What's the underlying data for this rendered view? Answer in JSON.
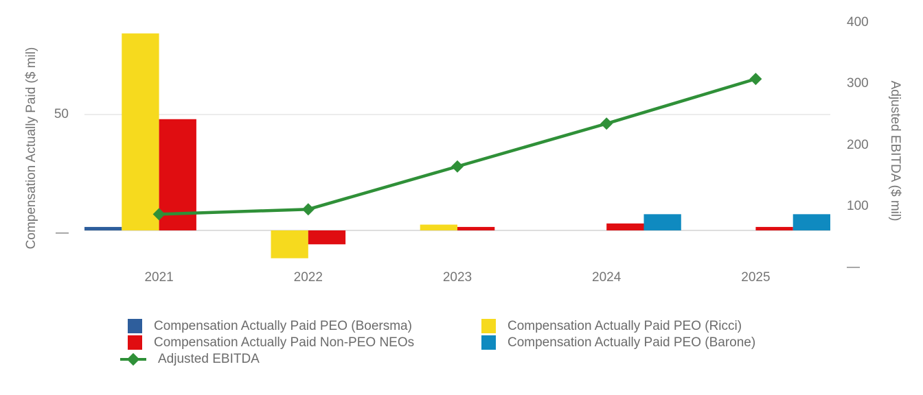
{
  "chart_data": {
    "type": "bar",
    "subtype": "grouped-bar-with-line-overlay",
    "categories": [
      "2021",
      "2022",
      "2023",
      "2024",
      "2025"
    ],
    "bar_series": [
      {
        "name": "Compensation Actually Paid PEO (Boersma)",
        "color": "#2E5E9C",
        "slot": 0,
        "values": [
          1.5,
          null,
          null,
          null,
          null
        ]
      },
      {
        "name": "Compensation Actually Paid PEO (Ricci)",
        "color": "#F6DA1E",
        "slot": 1,
        "values": [
          85,
          -12,
          2.5,
          null,
          null
        ]
      },
      {
        "name": "Compensation Actually Paid Non-PEO NEOs",
        "color": "#E00D11",
        "slot": 2,
        "values": [
          48,
          -6,
          1.5,
          3,
          1.5
        ]
      },
      {
        "name": "Compensation Actually Paid PEO (Barone)",
        "color": "#0F8AC0",
        "slot": 3,
        "values": [
          null,
          null,
          null,
          7,
          7
        ]
      }
    ],
    "line_series": [
      {
        "name": "Adjusted EBITDA",
        "color": "#2F9038",
        "axis": "right",
        "values": [
          87,
          95,
          165,
          235,
          308
        ]
      }
    ],
    "left_axis": {
      "label": "Compensation Actually Paid ($ mil)",
      "ticks": [
        {
          "value": 50,
          "label": "50"
        },
        {
          "value": 0,
          "label": "—"
        }
      ]
    },
    "right_axis": {
      "label": "Adjusted EBITDA ($ mil)",
      "ticks": [
        {
          "value": 400,
          "label": "400"
        },
        {
          "value": 300,
          "label": "300"
        },
        {
          "value": 200,
          "label": "200"
        },
        {
          "value": 100,
          "label": "100"
        },
        {
          "value": 0,
          "label": "—"
        }
      ]
    },
    "grid": "horizontal-left-axis-only",
    "legend_position": "bottom",
    "legend": {
      "columns": [
        [
          {
            "marker": "square",
            "color": "#2E5E9C",
            "label": "Compensation Actually Paid PEO (Boersma)"
          },
          {
            "marker": "square",
            "color": "#E00D11",
            "label": "Compensation Actually Paid Non-PEO NEOs"
          },
          {
            "marker": "line-diamond",
            "color": "#2F9038",
            "label": "Adjusted EBITDA"
          }
        ],
        [
          {
            "marker": "square",
            "color": "#F6DA1E",
            "label": "Compensation Actually Paid PEO (Ricci)"
          },
          {
            "marker": "square",
            "color": "#0F8AC0",
            "label": "Compensation Actually Paid PEO (Barone)"
          }
        ]
      ]
    },
    "colors": {
      "axis_text": "#757575",
      "legend_text": "#6b6b6b",
      "gridline": "#ececec",
      "baseline": "#dedede"
    }
  }
}
